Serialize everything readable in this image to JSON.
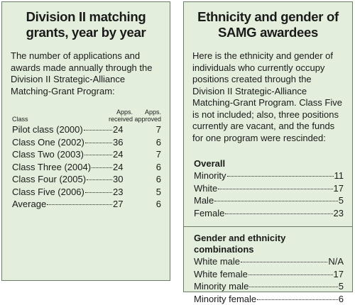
{
  "left_panel": {
    "title": "Division II matching grants, year by year",
    "intro": "The number of applications and awards made annually through the Division II Strategic-Alliance Matching-Grant Program:",
    "table": {
      "headers": [
        "Class",
        "Apps. received",
        "Apps. approved"
      ],
      "rows": [
        [
          "Pilot class (2000)",
          24,
          7
        ],
        [
          "Class One (2002)",
          36,
          6
        ],
        [
          "Class Two (2003)",
          24,
          7
        ],
        [
          "Class Three (2004)",
          24,
          6
        ],
        [
          "Class Four (2005)",
          30,
          6
        ],
        [
          "Class Five (2006)",
          23,
          5
        ],
        [
          "Average",
          27,
          6
        ]
      ]
    }
  },
  "right_panel": {
    "title": "Ethnicity and gender of SAMG awardees",
    "intro": "Here is the ethnicity and gender of individuals who currently occupy positions created through the Division II Strategic-Alliance Matching-Grant Program. Class Five is not included; also, three positions currently are vacant, and the funds for one program were rescinded:",
    "sections": [
      {
        "heading": "Overall",
        "rows": [
          [
            "Minority",
            11
          ],
          [
            "White",
            17
          ],
          [
            "Male",
            5
          ],
          [
            "Female",
            23
          ]
        ]
      },
      {
        "heading": "Gender and ethnicity combinations",
        "rows": [
          [
            "White male",
            "N/A"
          ],
          [
            "White female",
            17
          ],
          [
            "Minority male",
            5
          ],
          [
            "Minority female",
            6
          ]
        ]
      }
    ]
  }
}
